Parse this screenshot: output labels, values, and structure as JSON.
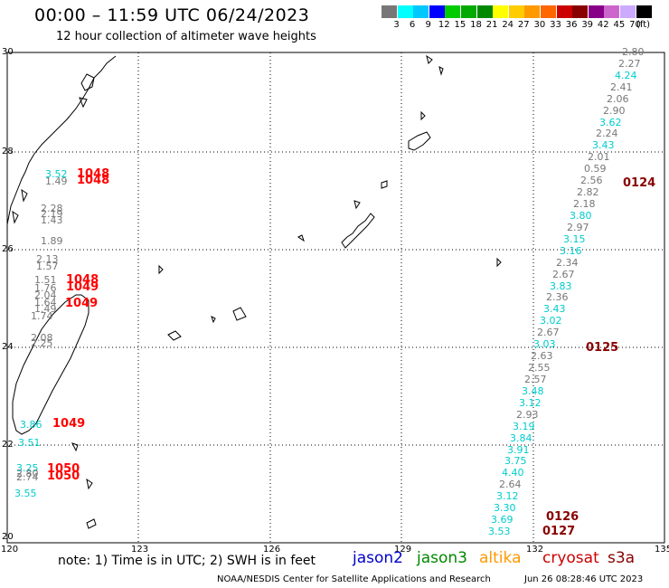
{
  "title": "00:00 – 11:59 UTC 06/24/2023",
  "subtitle": "12 hour collection of altimeter wave heights",
  "legend": {
    "colors": [
      "#777777",
      "#00ffff",
      "#00c8ff",
      "#0000ff",
      "#00cc00",
      "#00aa00",
      "#008800",
      "#ffff00",
      "#ffcc00",
      "#ff9900",
      "#ff6600",
      "#cc0000",
      "#880000",
      "#880088",
      "#cc66cc",
      "#ccaaff",
      "#000000"
    ],
    "labels": [
      "3",
      "6",
      "9",
      "12",
      "15",
      "18",
      "21",
      "24",
      "27",
      "30",
      "33",
      "36",
      "39",
      "42",
      "45",
      "70"
    ],
    "unit": "(ft)"
  },
  "axes": {
    "lat_labels": [
      "30",
      "28",
      "26",
      "24",
      "22",
      "20"
    ],
    "lon_labels": [
      "120",
      "123",
      "126",
      "129",
      "132",
      "135"
    ]
  },
  "note": "note: 1) Time is in UTC; 2) SWH is in feet",
  "satellites": [
    {
      "name": "jason2",
      "color": "#0000cc"
    },
    {
      "name": "jason3",
      "color": "#008800"
    },
    {
      "name": "altika",
      "color": "#ff9900"
    },
    {
      "name": "cryosat",
      "color": "#cc0000"
    },
    {
      "name": "s3a",
      "color": "#880000"
    }
  ],
  "footer": {
    "left": "NOAA/NESDIS Center for Satellite Applications and Research",
    "right": "Jun 26 08:28:46 UTC 2023"
  },
  "track_east": [
    {
      "v": "2.80",
      "c": "#777777"
    },
    {
      "v": "2.27",
      "c": "#777777"
    },
    {
      "v": "4.24",
      "c": "#00cccc"
    },
    {
      "v": "2.41",
      "c": "#777777"
    },
    {
      "v": "2.06",
      "c": "#777777"
    },
    {
      "v": "2.90",
      "c": "#777777"
    },
    {
      "v": "3.62",
      "c": "#00cccc"
    },
    {
      "v": "2.24",
      "c": "#777777"
    },
    {
      "v": "3.43",
      "c": "#00cccc"
    },
    {
      "v": "2.01",
      "c": "#777777"
    },
    {
      "v": "0.59",
      "c": "#777777"
    },
    {
      "v": "2.56",
      "c": "#777777"
    },
    {
      "v": "2.82",
      "c": "#777777"
    },
    {
      "v": "2.18",
      "c": "#777777"
    },
    {
      "v": "3.80",
      "c": "#00cccc"
    },
    {
      "v": "2.97",
      "c": "#777777"
    },
    {
      "v": "3.15",
      "c": "#00cccc"
    },
    {
      "v": "3.16",
      "c": "#00cccc"
    },
    {
      "v": "2.34",
      "c": "#777777"
    },
    {
      "v": "2.67",
      "c": "#777777"
    },
    {
      "v": "3.83",
      "c": "#00cccc"
    },
    {
      "v": "2.36",
      "c": "#777777"
    },
    {
      "v": "3.43",
      "c": "#00cccc"
    },
    {
      "v": "3.02",
      "c": "#00cccc"
    },
    {
      "v": "2.67",
      "c": "#777777"
    },
    {
      "v": "3.03",
      "c": "#00cccc"
    },
    {
      "v": "2.63",
      "c": "#777777"
    },
    {
      "v": "2.55",
      "c": "#777777"
    },
    {
      "v": "2.57",
      "c": "#777777"
    },
    {
      "v": "3.48",
      "c": "#00cccc"
    },
    {
      "v": "3.12",
      "c": "#00cccc"
    },
    {
      "v": "2.93",
      "c": "#777777"
    },
    {
      "v": "3.19",
      "c": "#00cccc"
    },
    {
      "v": "3.84",
      "c": "#00cccc"
    },
    {
      "v": "3.91",
      "c": "#00cccc"
    },
    {
      "v": "3.75",
      "c": "#00cccc"
    },
    {
      "v": "4.40",
      "c": "#00cccc"
    },
    {
      "v": "2.64",
      "c": "#777777"
    },
    {
      "v": "3.12",
      "c": "#00cccc"
    },
    {
      "v": "3.30",
      "c": "#00cccc"
    },
    {
      "v": "3.69",
      "c": "#00cccc"
    },
    {
      "v": "3.53",
      "c": "#00cccc"
    }
  ],
  "passes_east": [
    "0124",
    "0125",
    "0126",
    "0127"
  ],
  "track_west": [
    {
      "v": "3.52",
      "c": "#00cccc"
    },
    {
      "v": "1.49",
      "c": "#777777"
    },
    {
      "v": "2.28",
      "c": "#777777"
    },
    {
      "v": "2.19",
      "c": "#777777"
    },
    {
      "v": "1.43",
      "c": "#777777"
    },
    {
      "v": "1.89",
      "c": "#777777"
    },
    {
      "v": "2.13",
      "c": "#777777"
    },
    {
      "v": "1.57",
      "c": "#777777"
    },
    {
      "v": "1.51",
      "c": "#777777"
    },
    {
      "v": "1.76",
      "c": "#777777"
    },
    {
      "v": "2.04",
      "c": "#777777"
    },
    {
      "v": "1.64",
      "c": "#777777"
    },
    {
      "v": "1.49",
      "c": "#777777"
    },
    {
      "v": "1.74",
      "c": "#777777"
    },
    {
      "v": "2.08",
      "c": "#777777"
    },
    {
      "v": "2.25",
      "c": "#777777"
    },
    {
      "v": "3.86",
      "c": "#00cccc"
    },
    {
      "v": "3.51",
      "c": "#00cccc"
    },
    {
      "v": "3.25",
      "c": "#00cccc"
    },
    {
      "v": "2.80",
      "c": "#777777"
    },
    {
      "v": "2.74",
      "c": "#777777"
    },
    {
      "v": "3.55",
      "c": "#00cccc"
    }
  ],
  "passes_west": [
    "1048",
    "1048",
    "1048",
    "1049",
    "1049",
    "1049",
    "1050",
    "1050"
  ]
}
